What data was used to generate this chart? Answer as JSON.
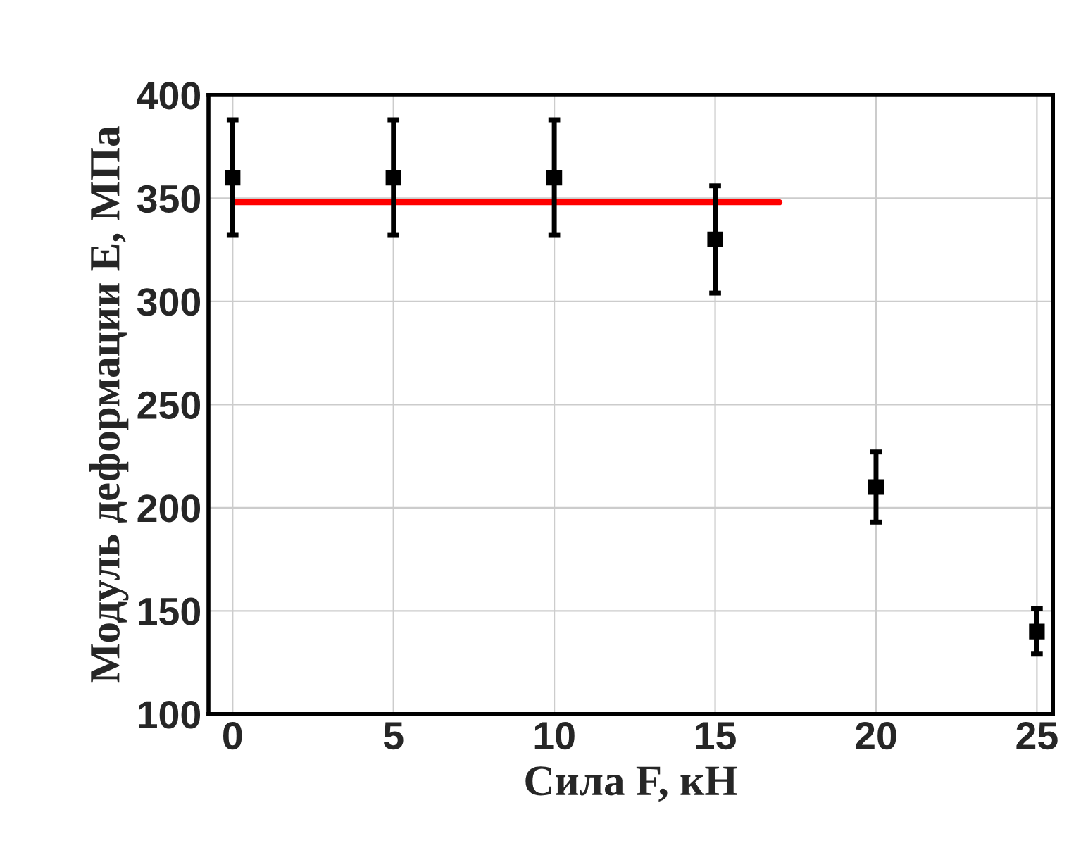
{
  "chart_data": {
    "type": "scatter",
    "xlabel": "Сила F, кН",
    "ylabel": "Модуль деформации E, МПа",
    "x": [
      0,
      5,
      10,
      15,
      20,
      25
    ],
    "series": [
      {
        "marker": "square",
        "color": "#000000",
        "values": [
          360,
          360,
          360,
          330,
          210,
          140
        ],
        "errors": [
          28,
          28,
          28,
          26,
          17,
          11
        ]
      },
      {
        "type": "line",
        "color": "#ff0000",
        "x": [
          0,
          17
        ],
        "values": [
          348,
          348
        ]
      }
    ],
    "xlim": [
      -0.75,
      25.5
    ],
    "ylim": [
      100,
      400
    ],
    "xticks": [
      0,
      5,
      10,
      15,
      20,
      25
    ],
    "yticks": [
      100,
      150,
      200,
      250,
      300,
      350,
      400
    ],
    "grid": true
  }
}
